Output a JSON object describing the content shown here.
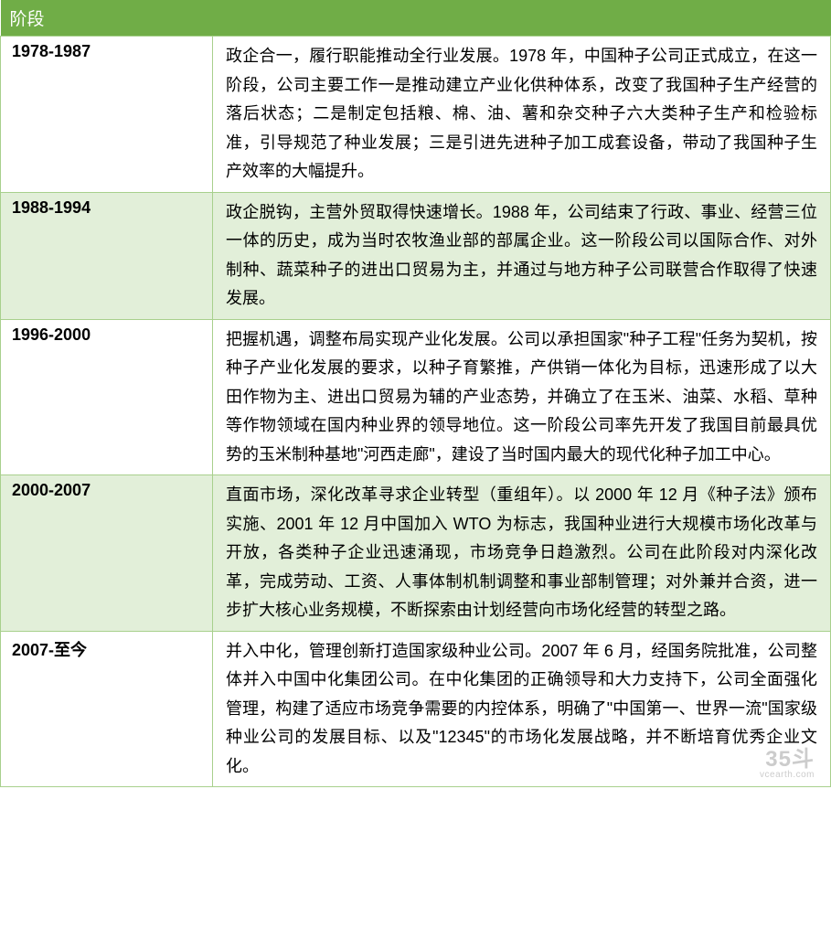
{
  "table": {
    "header": "阶段",
    "header_bg": "#70ad47",
    "header_color": "#ffffff",
    "row_alt_bg": "#e2efd9",
    "row_bg": "#ffffff",
    "border_color": "#a8d08d",
    "rows": [
      {
        "period": "1978-1987",
        "desc": "政企合一，履行职能推动全行业发展。1978 年，中国种子公司正式成立，在这一阶段，公司主要工作一是推动建立产业化供种体系，改变了我国种子生产经营的落后状态；二是制定包括粮、棉、油、薯和杂交种子六大类种子生产和检验标准，引导规范了种业发展；三是引进先进种子加工成套设备，带动了我国种子生产效率的大幅提升。"
      },
      {
        "period": "1988-1994",
        "desc": "政企脱钩，主营外贸取得快速增长。1988 年，公司结束了行政、事业、经营三位一体的历史，成为当时农牧渔业部的部属企业。这一阶段公司以国际合作、对外制种、蔬菜种子的进出口贸易为主，并通过与地方种子公司联营合作取得了快速发展。"
      },
      {
        "period": "1996-2000",
        "desc": "把握机遇，调整布局实现产业化发展。公司以承担国家\"种子工程\"任务为契机，按种子产业化发展的要求，以种子育繁推，产供销一体化为目标，迅速形成了以大田作物为主、进出口贸易为辅的产业态势，并确立了在玉米、油菜、水稻、草种等作物领域在国内种业界的领导地位。这一阶段公司率先开发了我国目前最具优势的玉米制种基地\"河西走廊\"，建设了当时国内最大的现代化种子加工中心。"
      },
      {
        "period": "2000-2007",
        "desc": "直面市场，深化改革寻求企业转型（重组年）。以 2000 年 12 月《种子法》颁布实施、2001 年 12 月中国加入 WTO 为标志，我国种业进行大规模市场化改革与开放，各类种子企业迅速涌现，市场竞争日趋激烈。公司在此阶段对内深化改革，完成劳动、工资、人事体制机制调整和事业部制管理；对外兼并合资，进一步扩大核心业务规模，不断探索由计划经营向市场化经营的转型之路。"
      },
      {
        "period": "2007-至今",
        "desc": "并入中化，管理创新打造国家级种业公司。2007 年 6 月，经国务院批准，公司整体并入中国中化集团公司。在中化集团的正确领导和大力支持下，公司全面强化管理，构建了适应市场竞争需要的内控体系，明确了\"中国第一、世界一流\"国家级种业公司的发展目标、以及\"12345\"的市场化发展战略，并不断培育优秀企业文化。"
      }
    ]
  },
  "watermark": {
    "main": "35斗",
    "sub": "vcearth.com"
  }
}
